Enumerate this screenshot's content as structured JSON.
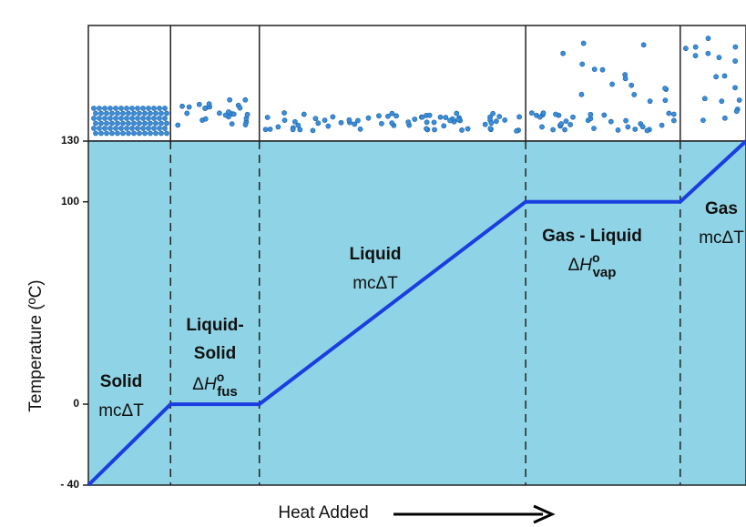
{
  "chart_data": {
    "type": "line",
    "x": [
      0,
      12.5,
      26,
      66.5,
      90,
      100
    ],
    "values": [
      -40,
      0,
      0,
      100,
      100,
      130
    ],
    "xlim": [
      0,
      100
    ],
    "ylim": [
      -40,
      130
    ],
    "yticks": [
      {
        "value": -40,
        "label": "- 40"
      },
      0,
      100,
      130
    ],
    "color": "#1a3ee0",
    "background": "#8fd4e6",
    "y_label": "Temperature  (ºC)",
    "x_label": "Heat Added",
    "annotations": [
      {
        "label": [
          "Solid"
        ],
        "formula": "mcΔT"
      },
      {
        "label": [
          "Liquid-",
          "Solid"
        ],
        "formula": {
          "base": "Δ",
          "var": "H",
          "sup": "o",
          "sub": "fus"
        }
      },
      {
        "label": [
          "Liquid"
        ],
        "formula": "mcΔT"
      },
      {
        "label": [
          "Gas - Liquid"
        ],
        "formula": {
          "base": "Δ",
          "var": "H",
          "sup": "o",
          "sub": "vap"
        }
      },
      {
        "label": [
          "Gas"
        ],
        "formula": "mcΔT"
      }
    ]
  }
}
